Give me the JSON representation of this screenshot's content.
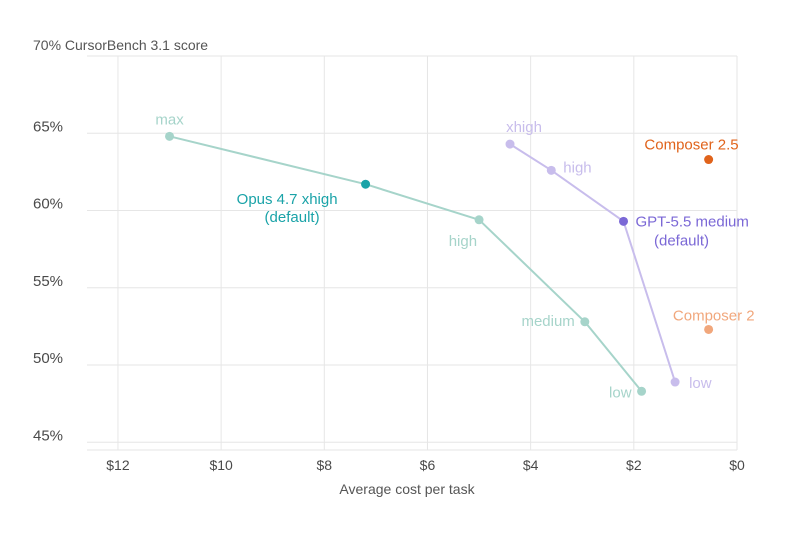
{
  "chart_data": {
    "type": "scatter",
    "ylabel": "70% CursorBench 3.1 score",
    "xlabel": "Average cost per task",
    "x_reversed": true,
    "xlim": [
      0,
      12.6
    ],
    "ylim": [
      44.5,
      70
    ],
    "x_ticks": [
      {
        "value": 12,
        "label": "$12"
      },
      {
        "value": 10,
        "label": "$10"
      },
      {
        "value": 8,
        "label": "$8"
      },
      {
        "value": 6,
        "label": "$6"
      },
      {
        "value": 4,
        "label": "$4"
      },
      {
        "value": 2,
        "label": "$2"
      },
      {
        "value": 0,
        "label": "$0"
      }
    ],
    "y_ticks": [
      {
        "value": 65,
        "label": "65%"
      },
      {
        "value": 60,
        "label": "60%"
      },
      {
        "value": 55,
        "label": "55%"
      },
      {
        "value": 50,
        "label": "50%"
      },
      {
        "value": 45,
        "label": "45%"
      }
    ],
    "grid": true,
    "series": [
      {
        "name": "Opus 4.7",
        "color": "#a6d4ca",
        "accent": "#1aa3a8",
        "connected": true,
        "points": [
          {
            "x": 11.0,
            "y": 64.8,
            "label": "max"
          },
          {
            "x": 7.2,
            "y": 61.7,
            "label": "Opus 4.7 xhigh",
            "label2": "(default)",
            "highlight": true
          },
          {
            "x": 5.0,
            "y": 59.4,
            "label": "high"
          },
          {
            "x": 2.95,
            "y": 52.8,
            "label": "medium"
          },
          {
            "x": 1.85,
            "y": 48.3,
            "label": "low"
          }
        ]
      },
      {
        "name": "GPT-5.5",
        "color": "#c8bdec",
        "accent": "#7b68d6",
        "connected": true,
        "points": [
          {
            "x": 4.4,
            "y": 64.3,
            "label": "xhigh"
          },
          {
            "x": 3.6,
            "y": 62.6,
            "label": "high"
          },
          {
            "x": 2.2,
            "y": 59.3,
            "label": "GPT-5.5 medium",
            "label2": "(default)",
            "highlight": true
          },
          {
            "x": 1.2,
            "y": 48.9,
            "label": "low"
          }
        ]
      },
      {
        "name": "Composer 2.5",
        "color": "#e0631b",
        "connected": false,
        "points": [
          {
            "x": 0.55,
            "y": 63.3,
            "label": "Composer 2.5"
          }
        ]
      },
      {
        "name": "Composer 2",
        "color": "#f1a77c",
        "connected": false,
        "points": [
          {
            "x": 0.55,
            "y": 52.3,
            "label": "Composer 2"
          }
        ]
      }
    ]
  }
}
